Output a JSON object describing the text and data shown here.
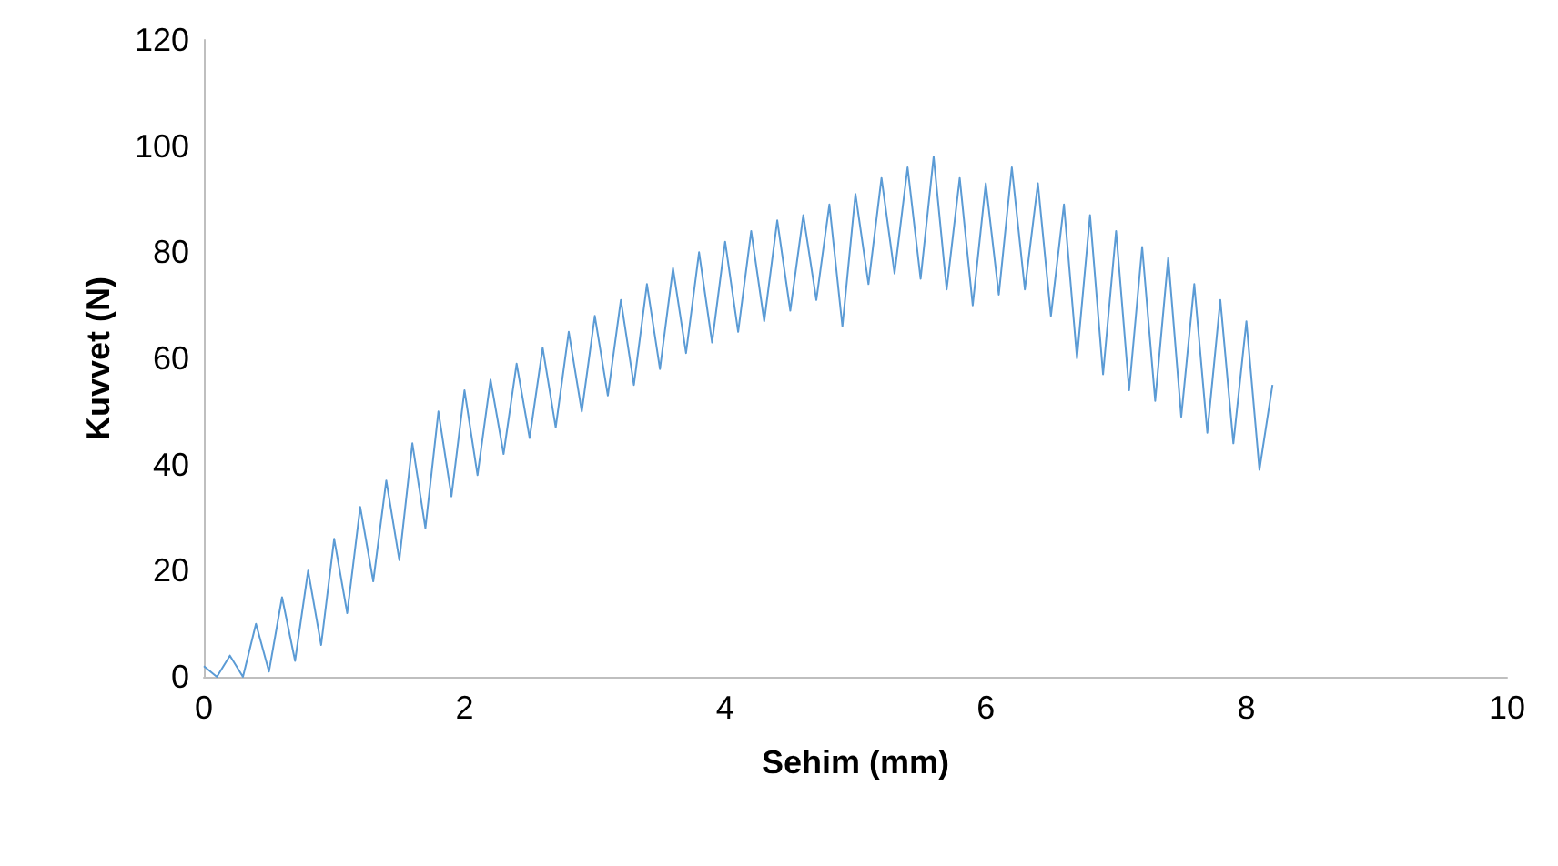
{
  "chart_data": {
    "type": "line",
    "xlabel": "Sehim (mm)",
    "ylabel": "Kuvvet (N)",
    "x": [
      0,
      0.1,
      0.2,
      0.3,
      0.4,
      0.5,
      0.6,
      0.7,
      0.8,
      0.9,
      1,
      1.1,
      1.2,
      1.3,
      1.4,
      1.5,
      1.6,
      1.7,
      1.8,
      1.9,
      2,
      2.1,
      2.2,
      2.3,
      2.4,
      2.5,
      2.6,
      2.7,
      2.8,
      2.9,
      3,
      3.1,
      3.2,
      3.3,
      3.4,
      3.5,
      3.6,
      3.7,
      3.8,
      3.9,
      4,
      4.1,
      4.2,
      4.3,
      4.4,
      4.5,
      4.6,
      4.7,
      4.8,
      4.9,
      5,
      5.1,
      5.2,
      5.3,
      5.4,
      5.5,
      5.6,
      5.7,
      5.8,
      5.9,
      6,
      6.1,
      6.2,
      6.3,
      6.4,
      6.5,
      6.6,
      6.7,
      6.8,
      6.9,
      7,
      7.1,
      7.2,
      7.3,
      7.4,
      7.5,
      7.6,
      7.7,
      7.8,
      7.9,
      8,
      8.1,
      8.2
    ],
    "series": [
      {
        "color": "#5b9bd5",
        "values": [
          2,
          0,
          4,
          0,
          10,
          1,
          15,
          3,
          20,
          6,
          26,
          12,
          32,
          18,
          37,
          22,
          44,
          28,
          50,
          34,
          54,
          38,
          56,
          42,
          59,
          45,
          62,
          47,
          65,
          50,
          68,
          53,
          71,
          55,
          74,
          58,
          77,
          61,
          80,
          63,
          82,
          65,
          84,
          67,
          86,
          69,
          87,
          71,
          89,
          66,
          91,
          74,
          94,
          76,
          96,
          75,
          98,
          73,
          94,
          70,
          93,
          72,
          96,
          73,
          93,
          68,
          89,
          60,
          87,
          57,
          84,
          54,
          81,
          52,
          79,
          49,
          74,
          46,
          71,
          44,
          67,
          39,
          55
        ]
      }
    ],
    "xlim": [
      0,
      10
    ],
    "xticks": [
      0,
      2,
      4,
      6,
      8,
      10
    ],
    "ylim": [
      0,
      120
    ],
    "yticks": [
      0,
      20,
      40,
      60,
      80,
      100,
      120
    ],
    "grid": false,
    "marker": "none",
    "line_style": "solid"
  }
}
